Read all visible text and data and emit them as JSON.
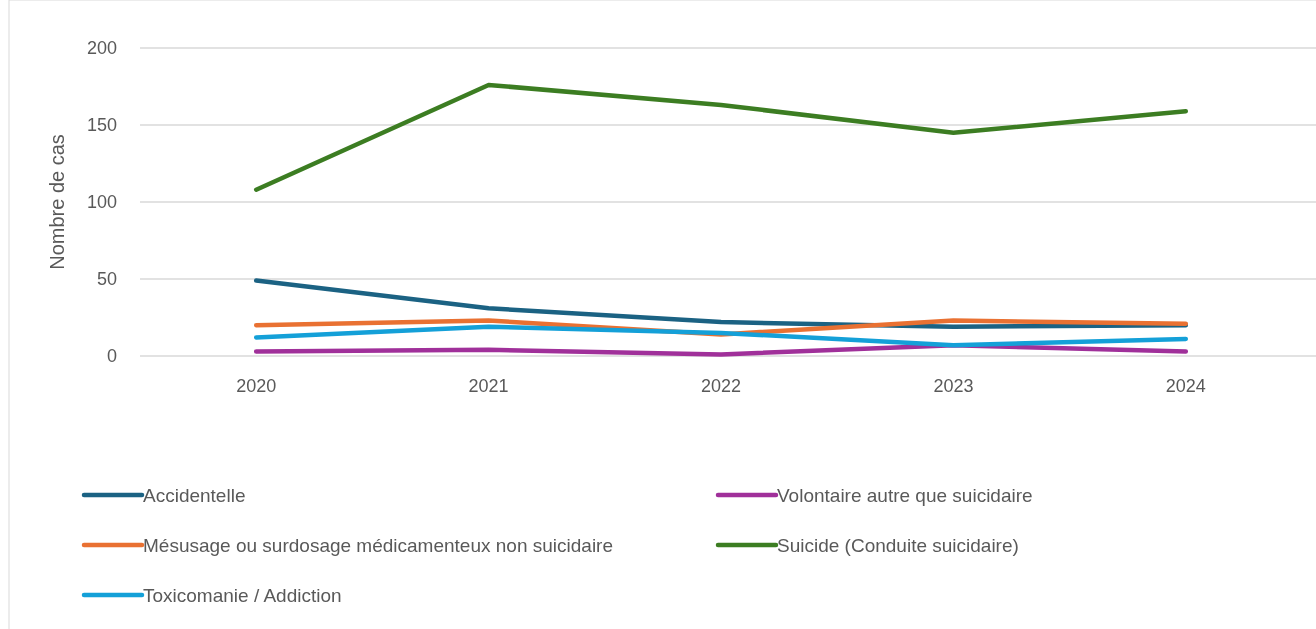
{
  "chart_data": {
    "type": "line",
    "ylabel": "Nombre de cas",
    "categories": [
      "2020",
      "2021",
      "2022",
      "2023",
      "2024"
    ],
    "ylim": [
      0,
      200
    ],
    "yticks": [
      0,
      50,
      100,
      150,
      200
    ],
    "grid": "y",
    "legend": "bottom",
    "marker": "none",
    "line_style": "solid",
    "series": [
      {
        "name": "Accidentelle",
        "color": "#1b6283",
        "values": [
          49,
          31,
          22,
          19,
          20
        ]
      },
      {
        "name": "Volontaire autre que suicidaire",
        "color": "#a0309a",
        "values": [
          3,
          4,
          1,
          7,
          3
        ]
      },
      {
        "name": "Mésusage ou surdosage médicamenteux non suicidaire",
        "color": "#e97132",
        "values": [
          20,
          23,
          14,
          23,
          21
        ]
      },
      {
        "name": "Suicide (Conduite suicidaire)",
        "color": "#3c7d22",
        "values": [
          108,
          176,
          163,
          145,
          159
        ]
      },
      {
        "name": "Toxicomanie / Addiction",
        "color": "#14a0d8",
        "values": [
          12,
          19,
          15,
          7,
          11
        ]
      }
    ]
  }
}
